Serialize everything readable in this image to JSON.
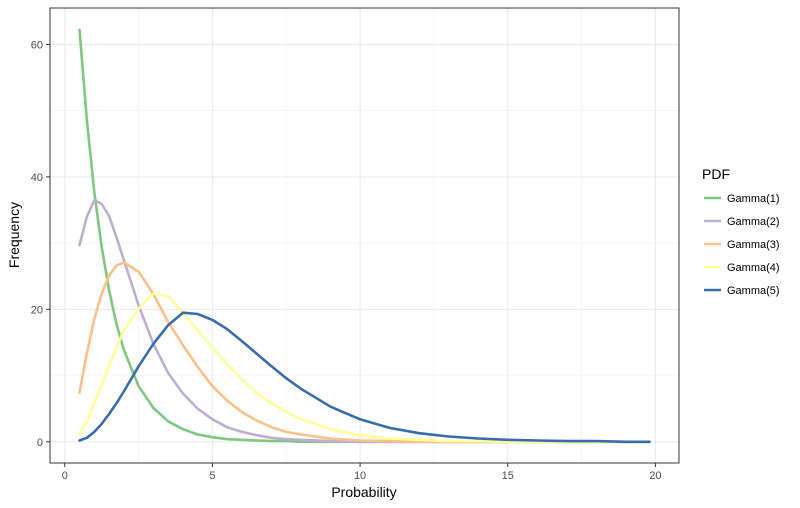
{
  "chart_data": {
    "type": "line",
    "xlabel": "Probability",
    "ylabel": "Frequency",
    "xlim": [
      -0.5,
      20.8
    ],
    "ylim": [
      -3.2,
      65.5
    ],
    "xticks": [
      0,
      5,
      10,
      15,
      20
    ],
    "yticks": [
      0,
      20,
      40,
      60
    ],
    "grid": true,
    "legend": {
      "title": "PDF",
      "placement": "right"
    },
    "x": [
      0.5,
      0.75,
      1,
      1.25,
      1.5,
      1.75,
      2,
      2.5,
      3,
      3.5,
      4,
      4.5,
      5,
      5.5,
      6,
      6.5,
      7,
      7.5,
      8,
      9,
      10,
      11,
      12,
      13,
      14,
      15,
      16,
      17,
      18,
      19,
      19.8
    ],
    "series": [
      {
        "name": "Gamma(1)",
        "color": "#7fc97f",
        "values": [
          62.2,
          48.5,
          37.7,
          29.4,
          22.9,
          17.8,
          13.9,
          8.4,
          5.1,
          3.1,
          1.9,
          1.1,
          0.7,
          0.4,
          0.3,
          0.2,
          0.1,
          0.1,
          0.0,
          0.0,
          0.0,
          0.0,
          0.0,
          0.0,
          0.0,
          0.0,
          0.0,
          0.0,
          0.0,
          0.0,
          0.0
        ]
      },
      {
        "name": "Gamma(2)",
        "color": "#beaed4",
        "values": [
          29.7,
          34.0,
          36.5,
          35.9,
          34.1,
          30.9,
          27.5,
          20.6,
          14.8,
          10.4,
          7.3,
          5.0,
          3.4,
          2.2,
          1.5,
          1.0,
          0.6,
          0.4,
          0.3,
          0.1,
          0.0,
          0.0,
          0.0,
          0.0,
          0.0,
          0.0,
          0.0,
          0.0,
          0.0,
          0.0,
          0.0
        ]
      },
      {
        "name": "Gamma(3)",
        "color": "#fdc086",
        "values": [
          7.4,
          13.4,
          18.5,
          22.4,
          25.1,
          26.6,
          27.1,
          25.7,
          22.3,
          18.1,
          14.6,
          11.3,
          8.4,
          6.2,
          4.5,
          3.2,
          2.2,
          1.5,
          1.1,
          0.5,
          0.2,
          0.1,
          0.0,
          0.0,
          0.0,
          0.0,
          0.0,
          0.0,
          0.0,
          0.0,
          0.0
        ]
      },
      {
        "name": "Gamma(4)",
        "color": "#ffff99",
        "values": [
          1.2,
          3.1,
          5.8,
          8.6,
          11.5,
          14.2,
          16.8,
          20.1,
          22.4,
          22.0,
          19.5,
          16.8,
          14.2,
          11.7,
          9.4,
          7.4,
          5.8,
          4.5,
          3.4,
          1.9,
          1.0,
          0.5,
          0.3,
          0.1,
          0.1,
          0.0,
          0.0,
          0.0,
          0.0,
          0.0,
          0.0
        ]
      },
      {
        "name": "Gamma(5)",
        "color": "#386cb0",
        "values": [
          0.2,
          0.6,
          1.5,
          2.7,
          4.2,
          5.8,
          7.6,
          11.4,
          14.8,
          17.6,
          19.5,
          19.3,
          18.4,
          17.0,
          15.2,
          13.3,
          11.4,
          9.6,
          8.0,
          5.3,
          3.4,
          2.1,
          1.3,
          0.8,
          0.5,
          0.3,
          0.2,
          0.1,
          0.1,
          0.0,
          0.0
        ]
      }
    ]
  }
}
